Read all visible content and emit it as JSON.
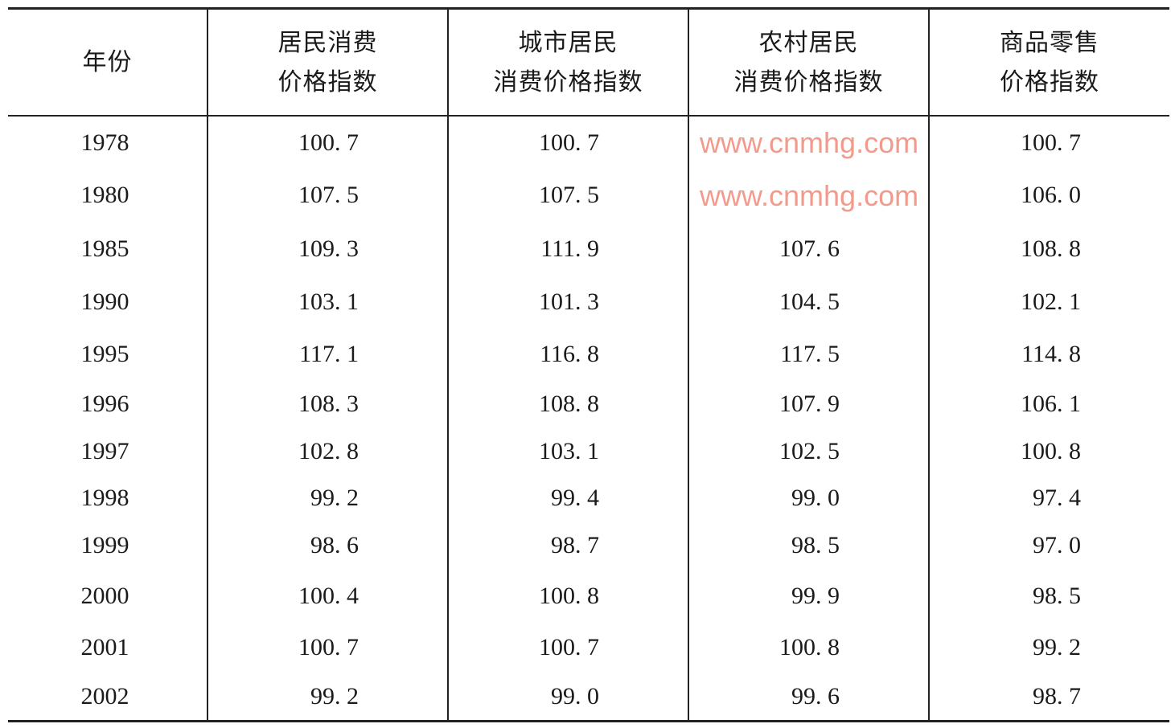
{
  "table": {
    "headers": [
      [
        "年份"
      ],
      [
        "居民消费",
        "价格指数"
      ],
      [
        "城市居民",
        "消费价格指数"
      ],
      [
        "农村居民",
        "消费价格指数"
      ],
      [
        "商品零售",
        "价格指数"
      ]
    ],
    "rows": [
      [
        "1978",
        "100. 7",
        "100. 7",
        "",
        "100. 7"
      ],
      [
        "1980",
        "107. 5",
        "107. 5",
        "",
        "106. 0"
      ],
      [
        "1985",
        "109. 3",
        "111. 9",
        "107. 6",
        "108. 8"
      ],
      [
        "1990",
        "103. 1",
        "101. 3",
        "104. 5",
        "102. 1"
      ],
      [
        "1995",
        "117. 1",
        "116. 8",
        "117. 5",
        "114. 8"
      ],
      [
        "1996",
        "108. 3",
        "108. 8",
        "107. 9",
        "106. 1"
      ],
      [
        "1997",
        "102. 8",
        "103. 1",
        "102. 5",
        "100. 8"
      ],
      [
        "1998",
        "99. 2",
        "99. 4",
        "99. 0",
        "97. 4"
      ],
      [
        "1999",
        "98. 6",
        "98. 7",
        "98. 5",
        "97. 0"
      ],
      [
        "2000",
        "100. 4",
        "100. 8",
        "99. 9",
        "98. 5"
      ],
      [
        "2001",
        "100. 7",
        "100. 7",
        "100. 8",
        "99. 2"
      ],
      [
        "2002",
        "99. 2",
        "99. 0",
        "99. 6",
        "98. 7"
      ]
    ]
  },
  "watermark": {
    "text": "www.cnmhg.com",
    "color": "#f08a78"
  }
}
